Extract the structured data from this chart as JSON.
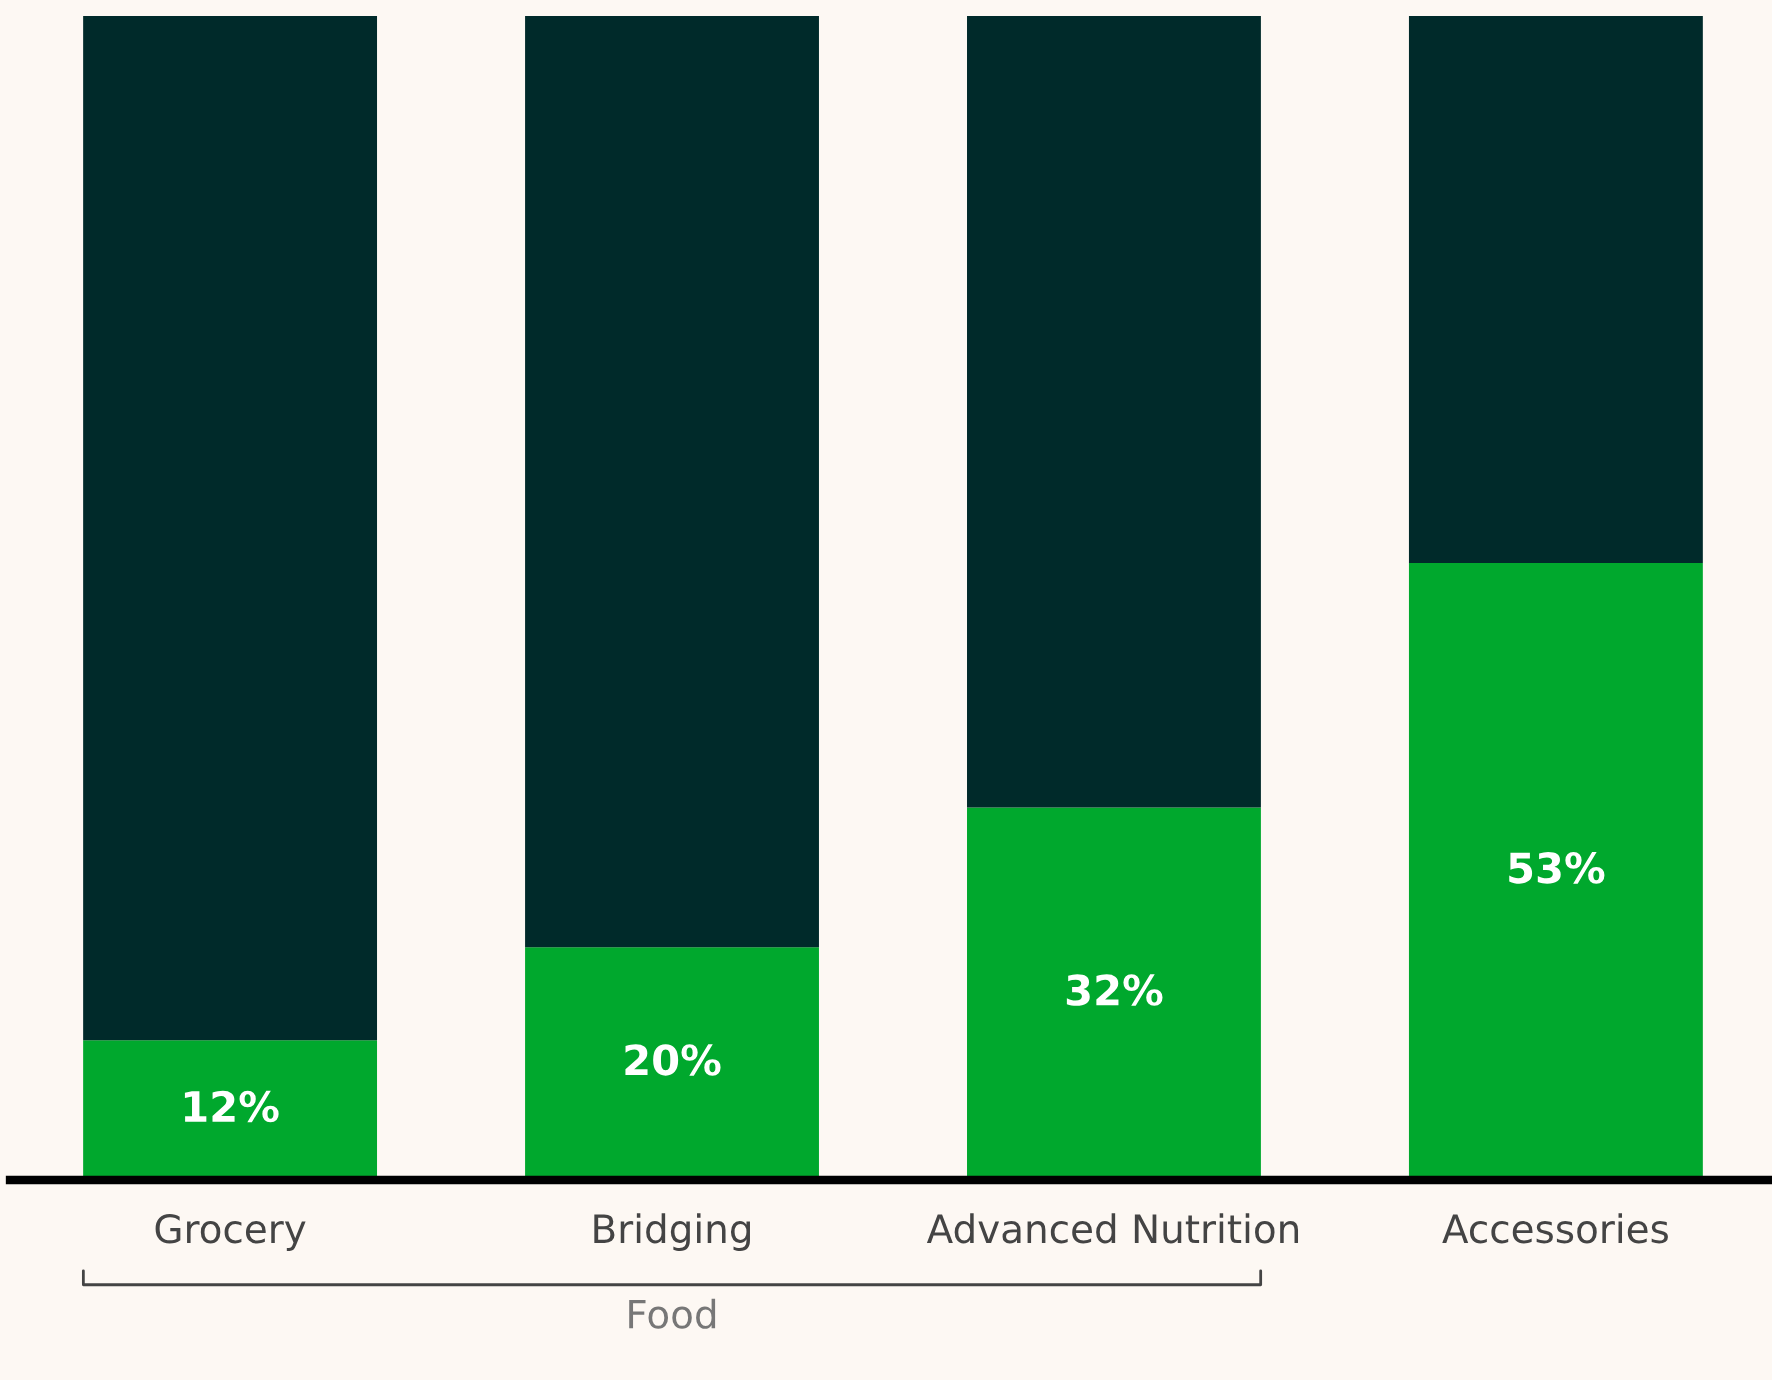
{
  "chart_data": {
    "type": "bar",
    "stacked": true,
    "categories": [
      "Grocery",
      "Bridging",
      "Advanced Nutrition",
      "Accessories"
    ],
    "series": [
      {
        "color": "#00a82d",
        "values": [
          12,
          20,
          32,
          53
        ],
        "value_labels": [
          "12%",
          "20%",
          "32%",
          "53%"
        ]
      },
      {
        "color": "#002a2a",
        "values": [
          88,
          80,
          68,
          47
        ]
      }
    ],
    "ylim": [
      0,
      100
    ],
    "tick_labels": "x",
    "grid": false,
    "legend": false,
    "annotations": [
      "Food"
    ]
  }
}
